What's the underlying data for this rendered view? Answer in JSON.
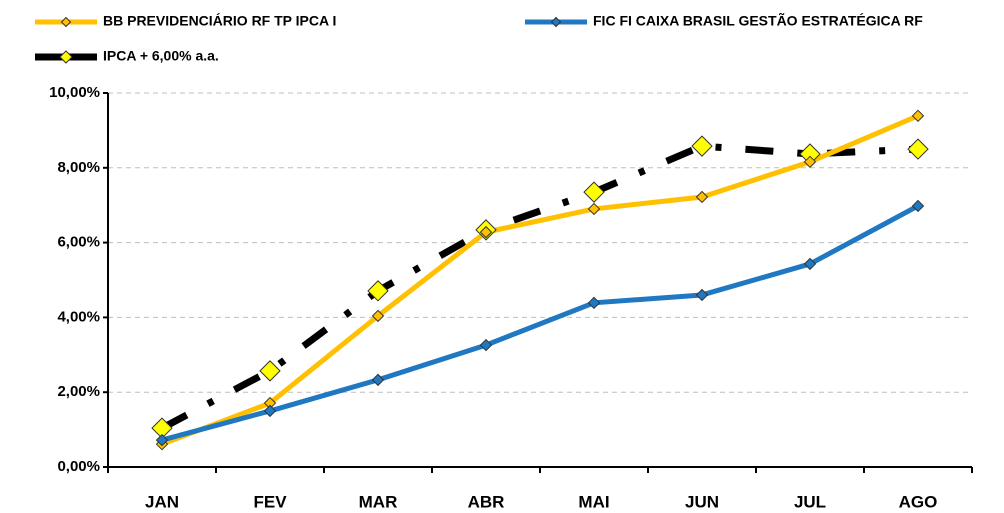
{
  "chart_data": {
    "type": "line",
    "categories": [
      "JAN",
      "FEV",
      "MAR",
      "ABR",
      "MAI",
      "JUN",
      "JUL",
      "AGO"
    ],
    "series": [
      {
        "name": "BB PREVIDENCIÁRIO RF TP IPCA I",
        "color": "#ffc000",
        "marker_color": "#ffc000",
        "line_style": "solid",
        "values": [
          0.61,
          1.71,
          4.04,
          6.28,
          6.9,
          7.22,
          8.16,
          9.39
        ]
      },
      {
        "name": "FIC FI CAIXA BRASIL GESTÃO ESTRATÉGICA RF",
        "color": "#1f78c1",
        "marker_color": "#1f78c1",
        "line_style": "solid",
        "values": [
          0.72,
          1.5,
          2.33,
          3.26,
          4.39,
          4.6,
          5.43,
          6.98
        ]
      },
      {
        "name": "IPCA + 6,00% a.a.",
        "color": "#000000",
        "marker_color": "#ffff00",
        "line_style": "dashdot",
        "values": [
          1.04,
          2.57,
          4.71,
          6.34,
          7.35,
          8.58,
          8.37,
          8.5
        ]
      }
    ],
    "ylim": [
      0,
      10
    ],
    "yticks": [
      {
        "value": 0,
        "label": "0,00%"
      },
      {
        "value": 2,
        "label": "2,00%"
      },
      {
        "value": 4,
        "label": "4,00%"
      },
      {
        "value": 6,
        "label": "6,00%"
      },
      {
        "value": 8,
        "label": "8,00%"
      },
      {
        "value": 10,
        "label": "10,00%"
      }
    ],
    "grid": true,
    "legend": "top"
  }
}
